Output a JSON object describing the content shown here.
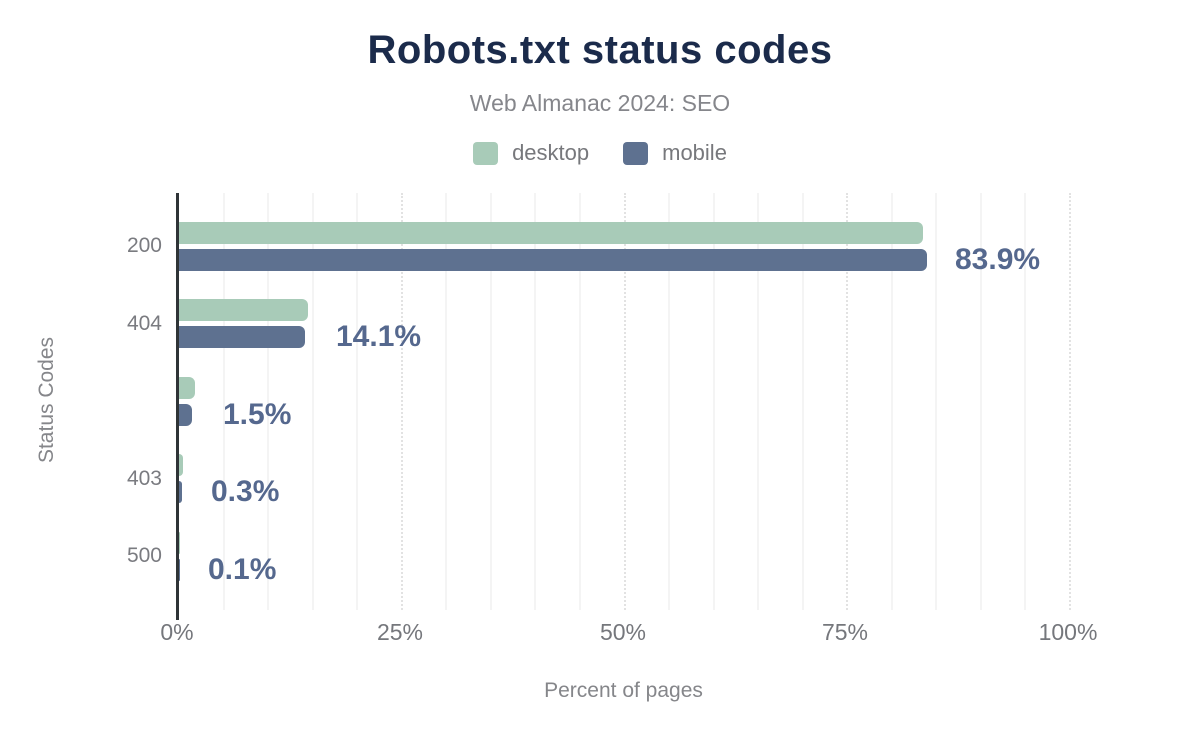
{
  "header": {
    "title": "Robots.txt status codes",
    "subtitle": "Web Almanac 2024: SEO"
  },
  "chart_data": {
    "type": "bar",
    "orientation": "horizontal",
    "title": "Robots.txt status codes",
    "subtitle": "Web Almanac 2024: SEO",
    "xlabel": "Percent of pages",
    "ylabel": "Status Codes",
    "xlim": [
      0,
      100
    ],
    "x_ticks": [
      {
        "label": "0%",
        "value": 0
      },
      {
        "label": "25%",
        "value": 25
      },
      {
        "label": "50%",
        "value": 50
      },
      {
        "label": "75%",
        "value": 75
      },
      {
        "label": "100%",
        "value": 100
      }
    ],
    "grid": {
      "minor_step_pct": 5,
      "major_step_pct": 25,
      "minor_style": "solid",
      "major_style": "dotted"
    },
    "legend_position": "top",
    "categories": [
      "200",
      "404",
      "",
      "403",
      "500"
    ],
    "series": [
      {
        "name": "desktop",
        "color": "#a8cbb8",
        "values": [
          83.5,
          14.5,
          1.8,
          0.4,
          0.1
        ]
      },
      {
        "name": "mobile",
        "color": "#5e7190",
        "values": [
          83.9,
          14.1,
          1.5,
          0.3,
          0.1
        ]
      }
    ],
    "data_labels": [
      "83.9%",
      "14.1%",
      "1.5%",
      "0.3%",
      "0.1%"
    ]
  },
  "colors": {
    "title": "#1b2b4b",
    "subtitle_text": "#85868b",
    "legend_text": "#77787c",
    "tick_text": "#75777c",
    "axis_title_text": "#85868a",
    "value_label": "#55688e",
    "axis_line": "#2f3437",
    "minor_gridline": "#f4f4f4",
    "major_gridline": "#e2e2e2",
    "background": "#ffffff"
  }
}
